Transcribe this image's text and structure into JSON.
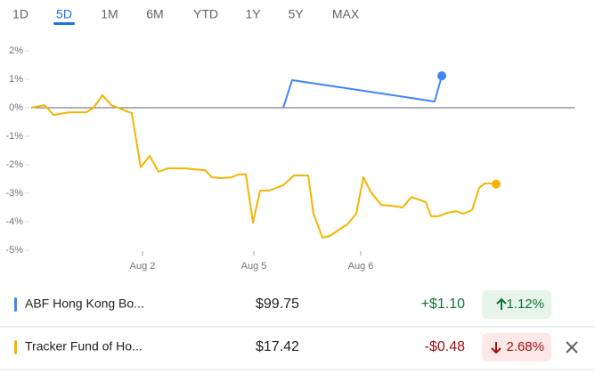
{
  "tabs": [
    "1D",
    "5D",
    "1M",
    "6M",
    "YTD",
    "1Y",
    "5Y",
    "MAX"
  ],
  "selected_tab_index": 1,
  "chart_data": {
    "type": "line",
    "xlim": [
      0,
      122
    ],
    "xticks": [
      {
        "value": 25,
        "label": "Aug 2"
      },
      {
        "value": 50,
        "label": "Aug 5"
      },
      {
        "value": 74,
        "label": "Aug 6"
      }
    ],
    "ylim": [
      -5,
      2
    ],
    "yticks": [
      {
        "value": 2,
        "label": "2%"
      },
      {
        "value": 1,
        "label": "1%"
      },
      {
        "value": 0,
        "label": "0%"
      },
      {
        "value": -1,
        "label": "-1%"
      },
      {
        "value": -2,
        "label": "-2%"
      },
      {
        "value": -3,
        "label": "-3%"
      },
      {
        "value": -4,
        "label": "-4%"
      },
      {
        "value": -5,
        "label": "-5%"
      }
    ],
    "series": [
      {
        "name": "ABF Hong Kong Bo...",
        "color": "#4285f4",
        "x": [
          56.6,
          58.6,
          90.6,
          92.2
        ],
        "values": [
          0,
          0.97,
          0.22,
          1.12
        ]
      },
      {
        "name": "Tracker Fund of Ho...",
        "color": "#f4b400",
        "x": [
          0,
          3,
          5,
          8.6,
          12.4,
          14,
          16,
          18,
          22.6,
          24.6,
          26.6,
          28.6,
          30.6,
          34.6,
          36.6,
          39,
          40.6,
          42.6,
          45,
          46.6,
          48.2,
          49.8,
          51.4,
          53.4,
          56.6,
          59,
          62.2,
          63.4,
          65.4,
          67,
          71,
          73,
          74.6,
          76.2,
          78.6,
          81,
          83.4,
          85.4,
          87,
          88.6,
          89.8,
          91.4,
          93.4,
          95.4,
          97,
          99,
          100.6,
          101.8,
          103,
          104.4
        ],
        "values": [
          0,
          0.09,
          -0.25,
          -0.16,
          -0.16,
          0,
          0.44,
          0.09,
          -0.19,
          -2.09,
          -1.69,
          -2.25,
          -2.13,
          -2.13,
          -2.16,
          -2.19,
          -2.44,
          -2.47,
          -2.44,
          -2.34,
          -2.34,
          -4.03,
          -2.91,
          -2.91,
          -2.72,
          -2.38,
          -2.38,
          -3.72,
          -4.56,
          -4.5,
          -4.09,
          -3.72,
          -2.44,
          -2.94,
          -3.41,
          -3.44,
          -3.5,
          -3.13,
          -3.22,
          -3.31,
          -3.81,
          -3.81,
          -3.69,
          -3.63,
          -3.72,
          -3.59,
          -2.81,
          -2.66,
          -2.66,
          -2.68
        ]
      }
    ]
  },
  "table": {
    "rows": [
      {
        "price": "$99.75",
        "change": "+$1.10",
        "change_pct": "1.12%",
        "direction": "up"
      },
      {
        "price": "$17.42",
        "change": "-$0.48",
        "change_pct": "2.68%",
        "direction": "down"
      }
    ]
  }
}
